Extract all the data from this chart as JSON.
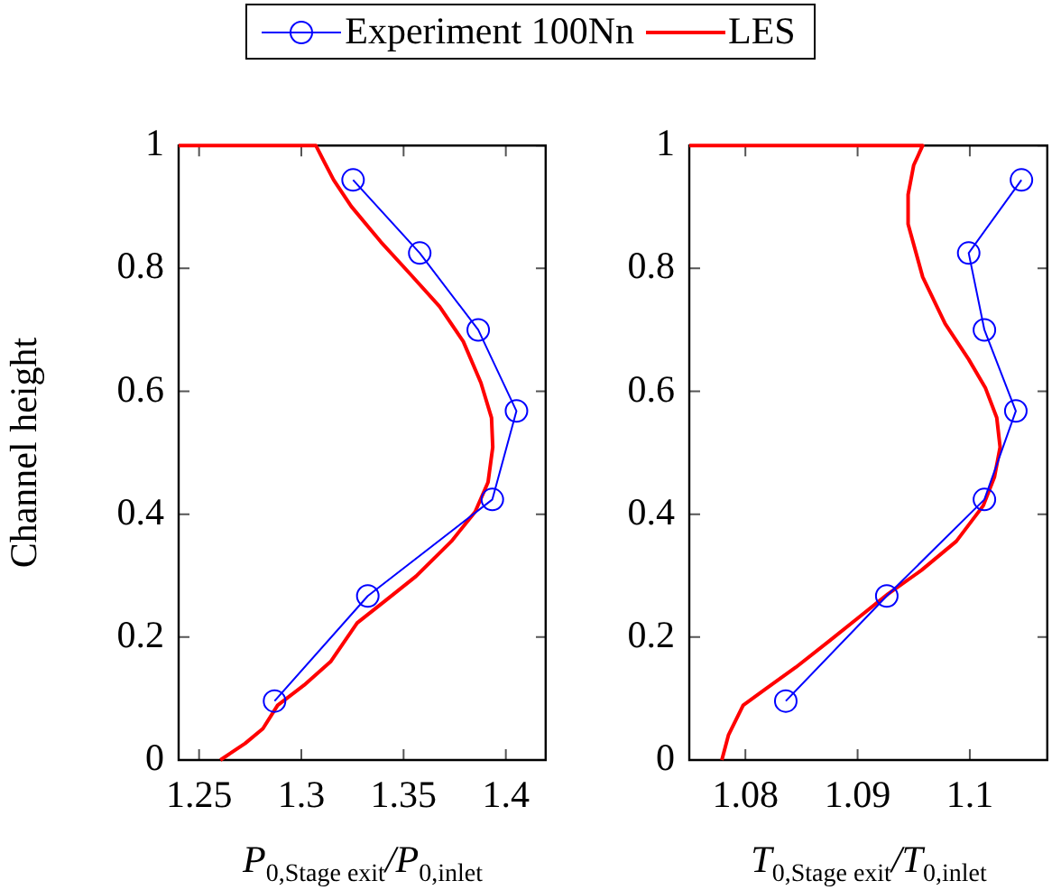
{
  "chart_data": [
    {
      "type": "line",
      "xlabel": "P$_{0,Stage exit}$/P$_{0,inlet}$",
      "ylabel": "Channel height",
      "legend": "top",
      "grid": false,
      "xlim": [
        1.24,
        1.42
      ],
      "xticks": [
        1.25,
        1.3,
        1.35,
        1.4
      ],
      "ylim": [
        0,
        1
      ],
      "yticks": [
        0,
        0.2,
        0.4,
        0.6,
        0.8,
        1
      ],
      "series": [
        {
          "name": "Experiment 100Nn",
          "color": "#0000ff",
          "marker": "circle",
          "x": [
            1.3253,
            1.3579,
            1.3865,
            1.4052,
            1.3934,
            1.3325,
            1.2869
          ],
          "values": [
            0.944,
            0.825,
            0.7,
            0.568,
            0.424,
            0.267,
            0.096
          ]
        },
        {
          "name": "LES",
          "color": "#ff0000",
          "marker": "none",
          "x": [
            1.2604,
            1.2725,
            1.2812,
            1.2884,
            1.3014,
            1.3143,
            1.3273,
            1.3417,
            1.3561,
            1.3734,
            1.385,
            1.3913,
            1.3936,
            1.393,
            1.3878,
            1.3792,
            1.3676,
            1.3532,
            1.3389,
            1.3244,
            1.3158,
            1.3114,
            1.3071,
            1.24
          ],
          "values": [
            0,
            0.027,
            0.051,
            0.089,
            0.122,
            0.16,
            0.223,
            0.261,
            0.299,
            0.356,
            0.404,
            0.452,
            0.509,
            0.557,
            0.614,
            0.681,
            0.738,
            0.791,
            0.843,
            0.901,
            0.944,
            0.972,
            1,
            1
          ]
        }
      ]
    },
    {
      "type": "line",
      "xlabel": "T$_{0,Stage exit}$/T$_{0,inlet}$",
      "legend": "top",
      "grid": false,
      "xlim": [
        1.075,
        1.107
      ],
      "xticks": [
        1.08,
        1.09,
        1.1
      ],
      "ylim": [
        0,
        1
      ],
      "yticks": [
        0,
        0.2,
        0.4,
        0.6,
        0.8,
        1
      ],
      "series": [
        {
          "name": "Experiment 100Nn",
          "color": "#0000ff",
          "marker": "circle",
          "x": [
            1.1046,
            1.0999,
            1.1013,
            1.1041,
            1.1013,
            1.0926,
            1.0836
          ],
          "values": [
            0.944,
            0.825,
            0.7,
            0.568,
            0.424,
            0.267,
            0.096
          ]
        },
        {
          "name": "LES",
          "color": "#ff0000",
          "marker": "none",
          "x": [
            1.0779,
            1.0785,
            1.0798,
            1.0819,
            1.0845,
            1.0875,
            1.0901,
            1.0927,
            1.0957,
            1.0988,
            1.1012,
            1.1022,
            1.1027,
            1.1024,
            1.1014,
            1.0999,
            1.0978,
            1.0958,
            1.0945,
            1.0945,
            1.095,
            1.0958,
            1.075
          ],
          "values": [
            0,
            0.041,
            0.089,
            0.117,
            0.151,
            0.194,
            0.232,
            0.27,
            0.309,
            0.356,
            0.414,
            0.461,
            0.509,
            0.557,
            0.605,
            0.652,
            0.71,
            0.786,
            0.872,
            0.92,
            0.968,
            1,
            1
          ]
        }
      ]
    }
  ]
}
